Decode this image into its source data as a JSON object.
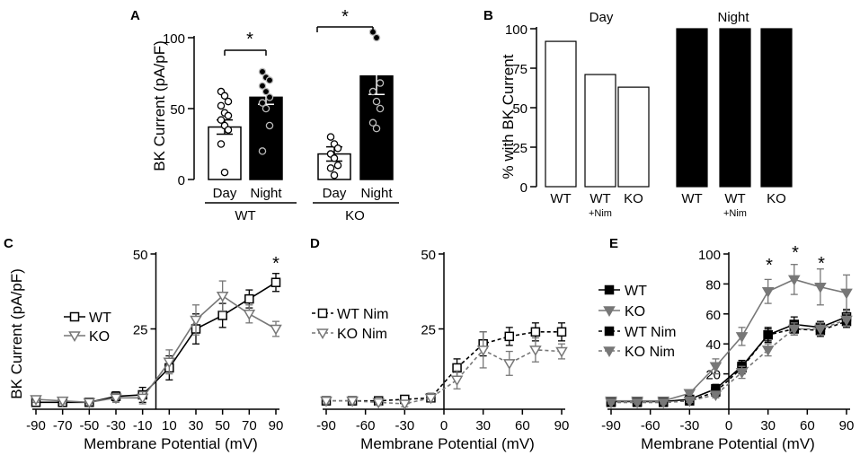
{
  "chart_data": [
    {
      "panel": "A",
      "type": "bar",
      "ylabel": "BK Current (pA/pF)",
      "ylim": [
        0,
        100
      ],
      "yticks": [
        0,
        50,
        100
      ],
      "bar_labels": [
        "Day",
        "Night",
        "Day",
        "Night"
      ],
      "groups": [
        "WT",
        "KO"
      ],
      "bars": [
        {
          "label": "Day",
          "group": "WT",
          "mean": 37,
          "sem": 5,
          "fill": "#ffffff",
          "points": [
            62,
            59,
            55,
            52,
            47,
            45,
            42,
            38,
            35,
            25,
            5
          ]
        },
        {
          "label": "Night",
          "group": "WT",
          "mean": 58,
          "sem": 5,
          "fill": "#000000",
          "points": [
            76,
            72,
            70,
            66,
            62,
            58,
            54,
            50,
            38,
            20
          ]
        },
        {
          "label": "Day",
          "group": "KO",
          "mean": 18,
          "sem": 5,
          "fill": "#ffffff",
          "points": [
            30,
            25,
            22,
            18,
            15,
            10,
            8,
            3
          ]
        },
        {
          "label": "Night",
          "group": "KO",
          "mean": 73,
          "sem": 13,
          "fill": "#000000",
          "points": [
            104,
            100,
            68,
            62,
            55,
            50,
            40,
            36
          ]
        }
      ],
      "significance": [
        {
          "between": [
            "WT Day",
            "WT Night"
          ],
          "mark": "*"
        },
        {
          "between": [
            "KO Day",
            "KO Night"
          ],
          "mark": "*"
        }
      ]
    },
    {
      "panel": "B",
      "type": "bar",
      "ylabel": "% with BK Current",
      "ylim": [
        0,
        100
      ],
      "yticks": [
        0,
        25,
        50,
        75,
        100
      ],
      "group_titles": [
        "Day",
        "Night"
      ],
      "categories": [
        "WT",
        "WT",
        "KO",
        "WT",
        "WT",
        "KO"
      ],
      "category_sublabels": [
        "",
        "+Nim",
        "",
        "",
        "+Nim",
        ""
      ],
      "values": [
        92,
        71,
        63,
        100,
        100,
        100
      ],
      "fills": [
        "#ffffff",
        "#ffffff",
        "#ffffff",
        "#000000",
        "#000000",
        "#000000"
      ]
    },
    {
      "panel": "C",
      "type": "line",
      "xlabel": "Membrane Potential (mV)",
      "ylabel": "BK Current (pA/pF)",
      "xlim": [
        -90,
        90
      ],
      "ylim": [
        0,
        50
      ],
      "xticks": [
        -90,
        -70,
        -50,
        -30,
        -10,
        10,
        30,
        50,
        70,
        90
      ],
      "yticks": [
        25,
        50
      ],
      "x": [
        -90,
        -70,
        -50,
        -30,
        -10,
        10,
        30,
        50,
        70,
        90
      ],
      "series": [
        {
          "name": "WT",
          "color": "#000000",
          "marker": "square",
          "dashed": false,
          "values": [
            0.5,
            0.5,
            0.5,
            2.5,
            3,
            12,
            25,
            29.5,
            35,
            40.5
          ],
          "errors": [
            1,
            1,
            1,
            1.5,
            2.5,
            4,
            5,
            4,
            3,
            3
          ]
        },
        {
          "name": "KO",
          "color": "#777777",
          "marker": "triangle-down",
          "dashed": false,
          "values": [
            1.5,
            1,
            0.5,
            2,
            2,
            14,
            28,
            36,
            30,
            25
          ],
          "errors": [
            1,
            1,
            1,
            1.5,
            2,
            4,
            5,
            5,
            3,
            2.5
          ]
        }
      ],
      "significance": [
        {
          "x": 90,
          "mark": "*"
        }
      ]
    },
    {
      "panel": "D",
      "type": "line",
      "xlabel": "Membrane Potential (mV)",
      "ylabel": "",
      "xlim": [
        -90,
        90
      ],
      "ylim": [
        0,
        50
      ],
      "xticks": [
        -90,
        -60,
        -30,
        0,
        30,
        60,
        90
      ],
      "yticks": [
        25,
        50
      ],
      "x": [
        -90,
        -70,
        -50,
        -30,
        -10,
        10,
        30,
        50,
        70,
        90
      ],
      "series": [
        {
          "name": "WT Nim",
          "color": "#000000",
          "marker": "square",
          "dashed": true,
          "values": [
            1,
            1,
            1,
            1.5,
            2,
            12,
            20,
            22.5,
            24,
            24
          ],
          "errors": [
            1,
            1,
            1,
            1,
            1.5,
            3,
            4,
            3,
            3,
            3
          ]
        },
        {
          "name": "KO Nim",
          "color": "#777777",
          "marker": "triangle-down",
          "dashed": true,
          "values": [
            1,
            1,
            0.5,
            0,
            2,
            8,
            18,
            13.5,
            18,
            17.5
          ],
          "errors": [
            1,
            1,
            1,
            1,
            1.5,
            3,
            6,
            4,
            4,
            2.5
          ]
        }
      ]
    },
    {
      "panel": "E",
      "type": "line",
      "xlabel": "Membrane Potential (mV)",
      "ylabel": "",
      "xlim": [
        -90,
        90
      ],
      "ylim": [
        0,
        100
      ],
      "xticks": [
        -90,
        -60,
        -30,
        0,
        30,
        60,
        90
      ],
      "yticks": [
        20,
        40,
        60,
        80,
        100
      ],
      "x": [
        -90,
        -70,
        -50,
        -30,
        -10,
        10,
        30,
        50,
        70,
        90
      ],
      "series": [
        {
          "name": "WT",
          "color": "#000000",
          "marker": "square-filled",
          "dashed": false,
          "values": [
            1.5,
            1.5,
            1.5,
            3,
            10,
            25,
            46,
            53,
            51,
            58
          ],
          "errors": [
            1,
            1,
            1,
            1.5,
            3,
            4,
            5,
            5,
            4,
            5
          ]
        },
        {
          "name": "KO",
          "color": "#777777",
          "marker": "triangle-filled",
          "dashed": false,
          "values": [
            2,
            2,
            2,
            7,
            25,
            45,
            75,
            83,
            78,
            74
          ],
          "errors": [
            1,
            1,
            1,
            2,
            5,
            6,
            8,
            10,
            12,
            12
          ]
        },
        {
          "name": "WT Nim",
          "color": "#000000",
          "marker": "square-filled",
          "dashed": true,
          "values": [
            1,
            1,
            1,
            2,
            8,
            24,
            46,
            50,
            49,
            55
          ],
          "errors": [
            1,
            1,
            1,
            1,
            3,
            4,
            4,
            4,
            4,
            4
          ]
        },
        {
          "name": "KO Nim",
          "color": "#777777",
          "marker": "triangle-filled",
          "dashed": true,
          "values": [
            1,
            1,
            1,
            2,
            6,
            21,
            36,
            50,
            50,
            56
          ],
          "errors": [
            1,
            1,
            1,
            1,
            2,
            4,
            4,
            4,
            4,
            4
          ]
        }
      ],
      "significance": [
        {
          "x": 30,
          "mark": "*"
        },
        {
          "x": 50,
          "mark": "*"
        },
        {
          "x": 70,
          "mark": "*"
        }
      ]
    }
  ]
}
